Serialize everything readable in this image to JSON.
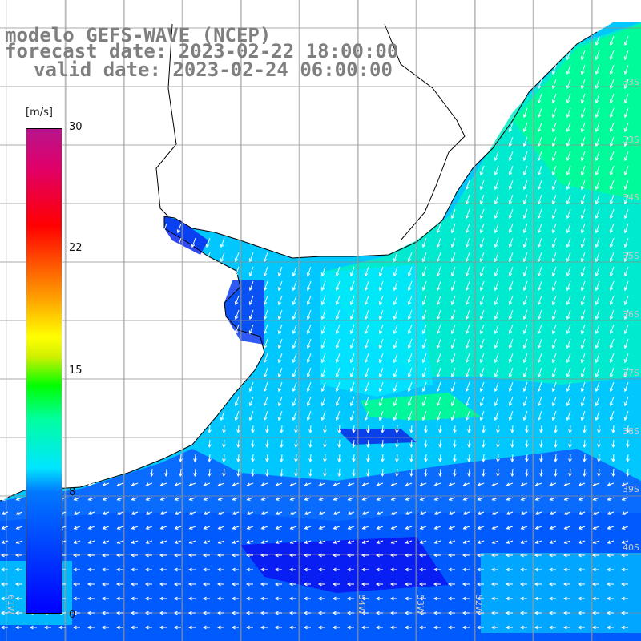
{
  "title": {
    "line1": "modelo GEFS-WAVE (NCEP)",
    "line2": "forecast date: 2023-02-22 18:00:00",
    "line3": "valid date: 2023-02-24 06:00:00"
  },
  "colorbar": {
    "unit": "[m/s]",
    "ticks": [
      "30",
      "22",
      "15",
      "8",
      "0"
    ],
    "min": 0,
    "max": 30,
    "colors": [
      "#0000ff",
      "#00e6ff",
      "#00ff00",
      "#ffff00",
      "#ff0000",
      "#b8148c"
    ]
  },
  "graticule": {
    "lat_labels": [
      "33S",
      "34S",
      "35S",
      "36S",
      "37S",
      "38S",
      "39S",
      "40S"
    ],
    "lon_labels": [
      "61W",
      "54W",
      "53W",
      "52W"
    ]
  },
  "colors": {
    "land": "#ffffff",
    "coastline": "#000000",
    "grid": "#8c8c8c",
    "arrows": "#ffffff",
    "title_text": "#7f7f7f"
  }
}
